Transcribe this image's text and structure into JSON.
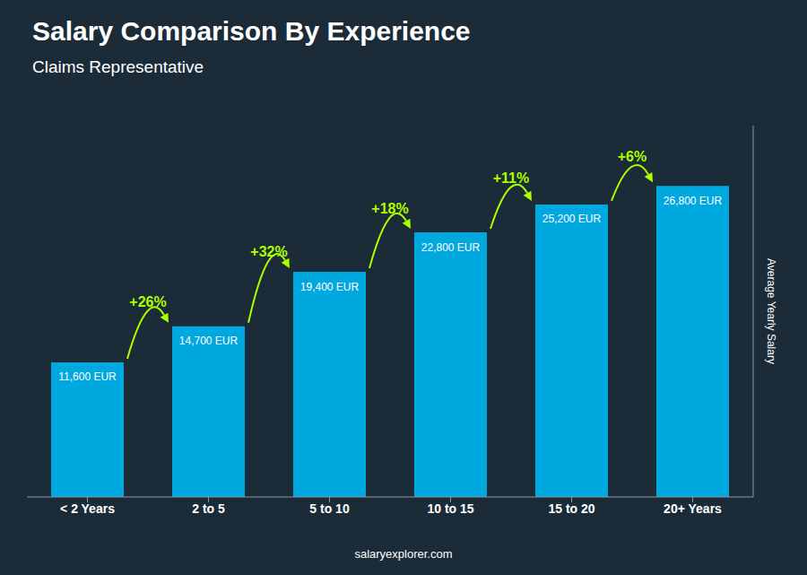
{
  "chart_data": {
    "type": "bar",
    "title": "Salary Comparison By Experience",
    "subtitle": "Claims Representative",
    "y_label": "Average Yearly Salary",
    "footer": "salaryexplorer.com",
    "categories": [
      "< 2 Years",
      "2 to 5",
      "5 to 10",
      "10 to 15",
      "15 to 20",
      "20+ Years"
    ],
    "values": [
      11600,
      14700,
      19400,
      22800,
      25200,
      26800
    ],
    "value_labels": [
      "11,600 EUR",
      "14,700 EUR",
      "19,400 EUR",
      "22,800 EUR",
      "25,200 EUR",
      "26,800 EUR"
    ],
    "data_labels": true,
    "color": "#00a8e0",
    "ylim": [
      0,
      32000
    ],
    "tick_labels": "x",
    "grid": false,
    "annotations": [
      {
        "text": "+26%",
        "color": "#aaff00"
      },
      {
        "text": "+32%",
        "color": "#aaff00"
      },
      {
        "text": "+18%",
        "color": "#aaff00"
      },
      {
        "text": "+11%",
        "color": "#aaff00"
      },
      {
        "text": "+6%",
        "color": "#aaff00"
      }
    ]
  }
}
